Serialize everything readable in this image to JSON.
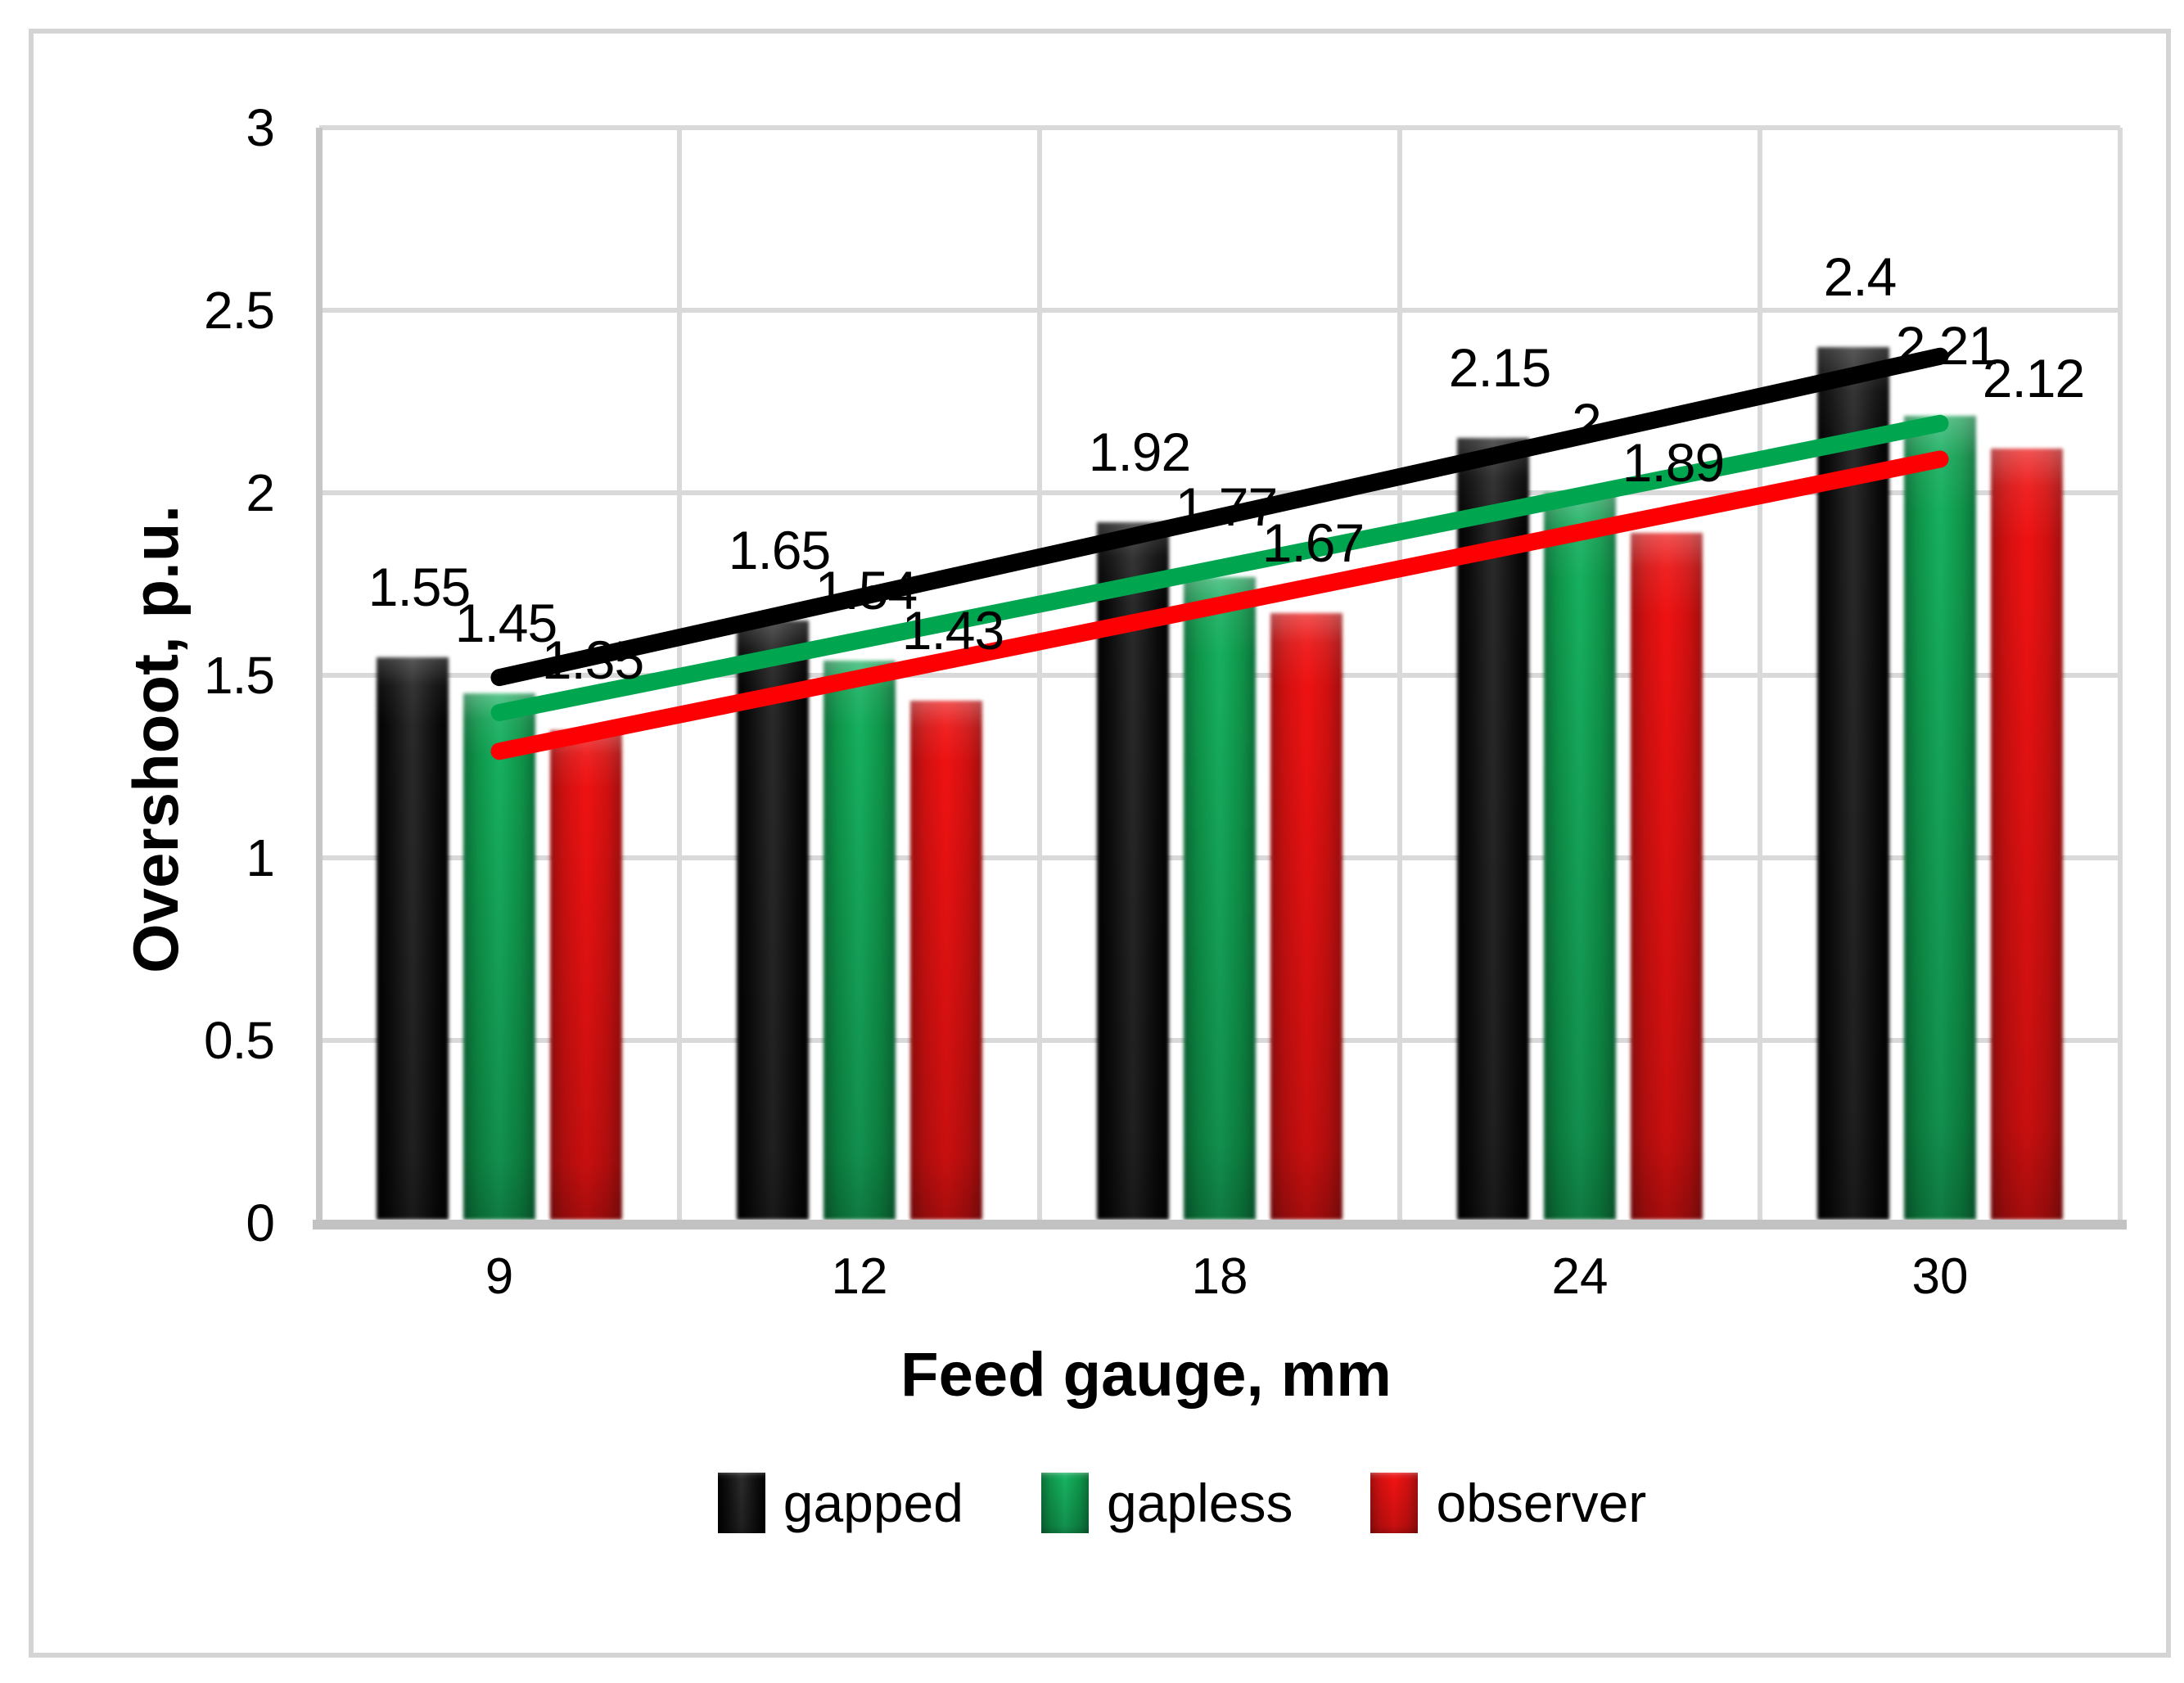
{
  "chart_data": {
    "type": "bar",
    "title": "",
    "xlabel": "Feed gauge, mm",
    "ylabel": "Overshoot, p.u.",
    "categories": [
      "9",
      "12",
      "18",
      "24",
      "30"
    ],
    "series": [
      {
        "name": "gapped",
        "color": "#000000",
        "trend_color": "#000000",
        "values": [
          1.55,
          1.65,
          1.92,
          2.15,
          2.4
        ]
      },
      {
        "name": "gapless",
        "color": "#0e9549",
        "trend_color": "#00a64f",
        "values": [
          1.45,
          1.54,
          1.77,
          2,
          2.21
        ]
      },
      {
        "name": "observer",
        "color": "#d40f0f",
        "trend_color": "#fd0004",
        "values": [
          1.35,
          1.43,
          1.67,
          1.89,
          2.12
        ]
      }
    ],
    "data_labels": [
      [
        "1.55",
        "1.65",
        "1.92",
        "2.15",
        "2.4"
      ],
      [
        "1.45",
        "1.54",
        "1.77",
        "2",
        "2.21"
      ],
      [
        "1.35",
        "1.43",
        "1.67",
        "1.89",
        "2.12"
      ]
    ],
    "ylim": [
      0,
      3
    ],
    "ytick_step": 0.5,
    "ytick_labels": [
      "0",
      "0.5",
      "1",
      "1.5",
      "2",
      "2.5",
      "3"
    ],
    "grid": true,
    "legend_position": "bottom",
    "trendlines": "linear",
    "colors": {
      "gridline": "#d9d9d9",
      "axis_line": "#c2c2c2",
      "frame_border": "#d4d4d4",
      "text": "#000000",
      "background": "#ffffff"
    }
  }
}
